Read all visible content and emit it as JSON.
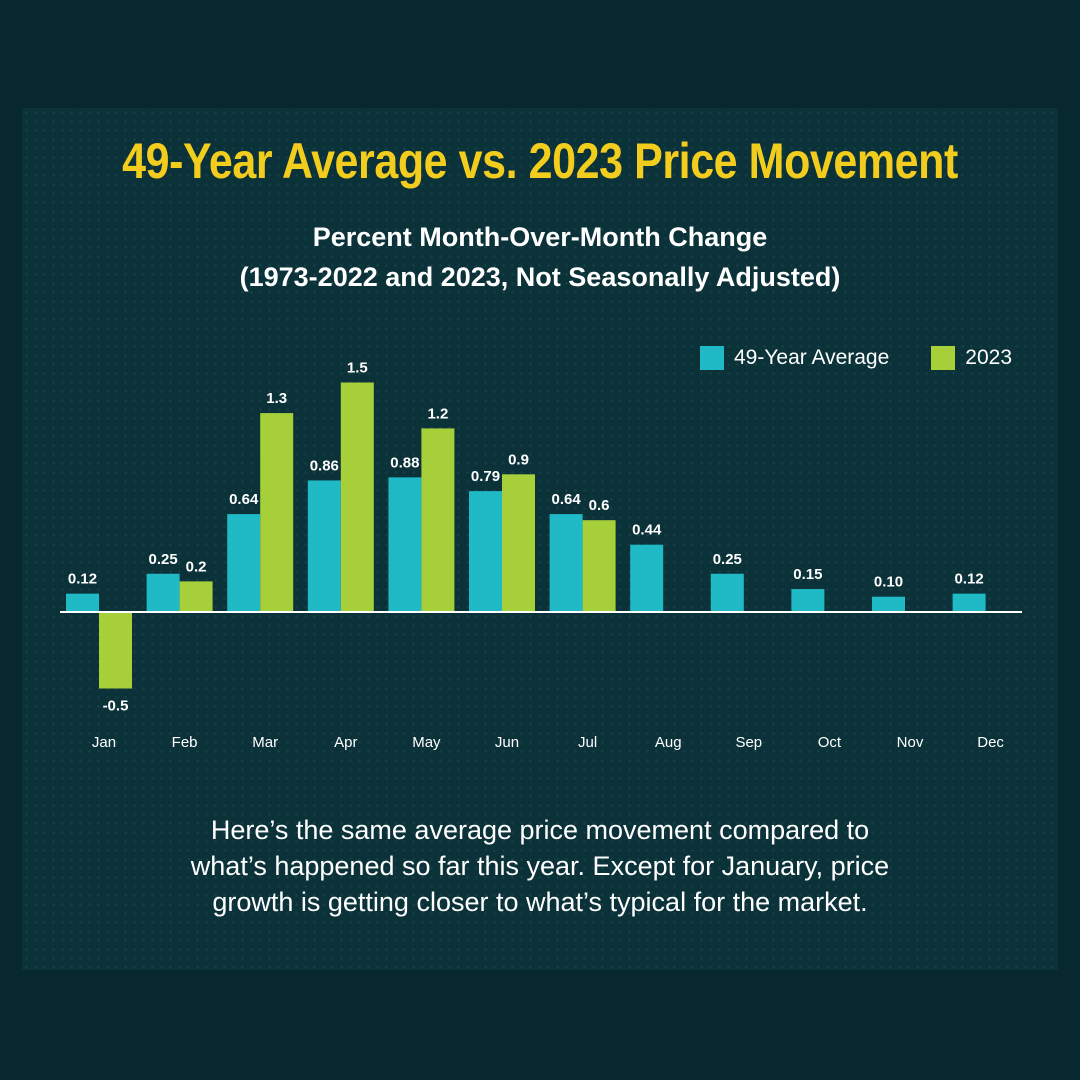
{
  "title": "49-Year Average vs. 2023 Price Movement",
  "subtitle_line1": "Percent Month-Over-Month Change",
  "subtitle_line2": "(1973-2022 and 2023, Not Seasonally Adjusted)",
  "caption_lines": [
    "Here’s the same average price movement compared to",
    "what’s happened so far this year. Except for January, price",
    "growth is getting closer to what’s typical for the market."
  ],
  "colors": {
    "avg": "#1fbac6",
    "y2023": "#a6cf3a",
    "title": "#f2cd1d"
  },
  "chart_data": {
    "type": "bar",
    "title": "49-Year Average vs. 2023 Price Movement",
    "subtitle": "Percent Month-Over-Month Change (1973-2022 and 2023, Not Seasonally Adjusted)",
    "categories": [
      "Jan",
      "Feb",
      "Mar",
      "Apr",
      "May",
      "Jun",
      "Jul",
      "Aug",
      "Sep",
      "Oct",
      "Nov",
      "Dec"
    ],
    "series": [
      {
        "name": "49-Year Average",
        "values": [
          0.12,
          0.25,
          0.64,
          0.86,
          0.88,
          0.79,
          0.64,
          0.44,
          0.25,
          0.15,
          0.1,
          0.12
        ],
        "labels": [
          "0.12",
          "0.25",
          "0.64",
          "0.86",
          "0.88",
          "0.79",
          "0.64",
          "0.44",
          "0.25",
          "0.15",
          "0.10",
          "0.12"
        ]
      },
      {
        "name": "2023",
        "values": [
          -0.5,
          0.2,
          1.3,
          1.5,
          1.2,
          0.9,
          0.6,
          null,
          null,
          null,
          null,
          null
        ],
        "labels": [
          "-0.5",
          "0.2",
          "1.3",
          "1.5",
          "1.2",
          "0.9",
          "0.6",
          null,
          null,
          null,
          null,
          null
        ]
      }
    ],
    "legend_position": "top-right",
    "grid": false,
    "ylim": [
      -0.5,
      1.5
    ]
  }
}
